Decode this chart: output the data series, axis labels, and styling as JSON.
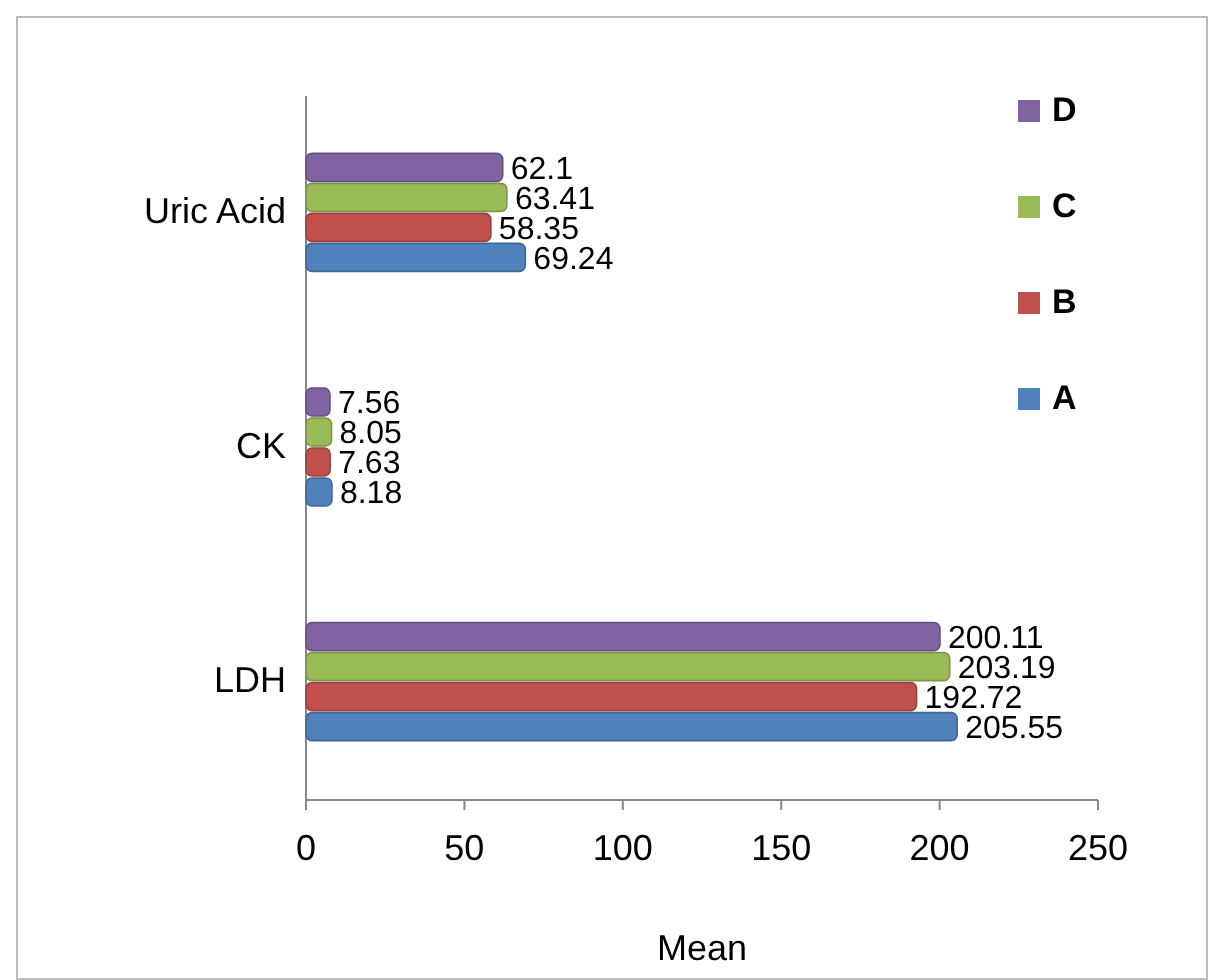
{
  "chart_data": {
    "type": "bar",
    "orientation": "horizontal",
    "categories": [
      "Uric Acid",
      "CK",
      "LDH"
    ],
    "xlabel": "Mean",
    "xlim": [
      0,
      250
    ],
    "xticks": [
      0,
      50,
      100,
      150,
      200,
      250
    ],
    "data_labels": true,
    "legend": "top right",
    "grid": false,
    "series": [
      {
        "name": "A",
        "color": "#4f81bd",
        "values": [
          69.24,
          8.18,
          205.55
        ]
      },
      {
        "name": "B",
        "color": "#c0504d",
        "values": [
          58.35,
          7.63,
          192.72
        ]
      },
      {
        "name": "C",
        "color": "#9bbb59",
        "values": [
          63.41,
          8.05,
          203.19
        ]
      },
      {
        "name": "D",
        "color": "#8064a2",
        "values": [
          62.1,
          7.56,
          200.11
        ]
      }
    ]
  }
}
